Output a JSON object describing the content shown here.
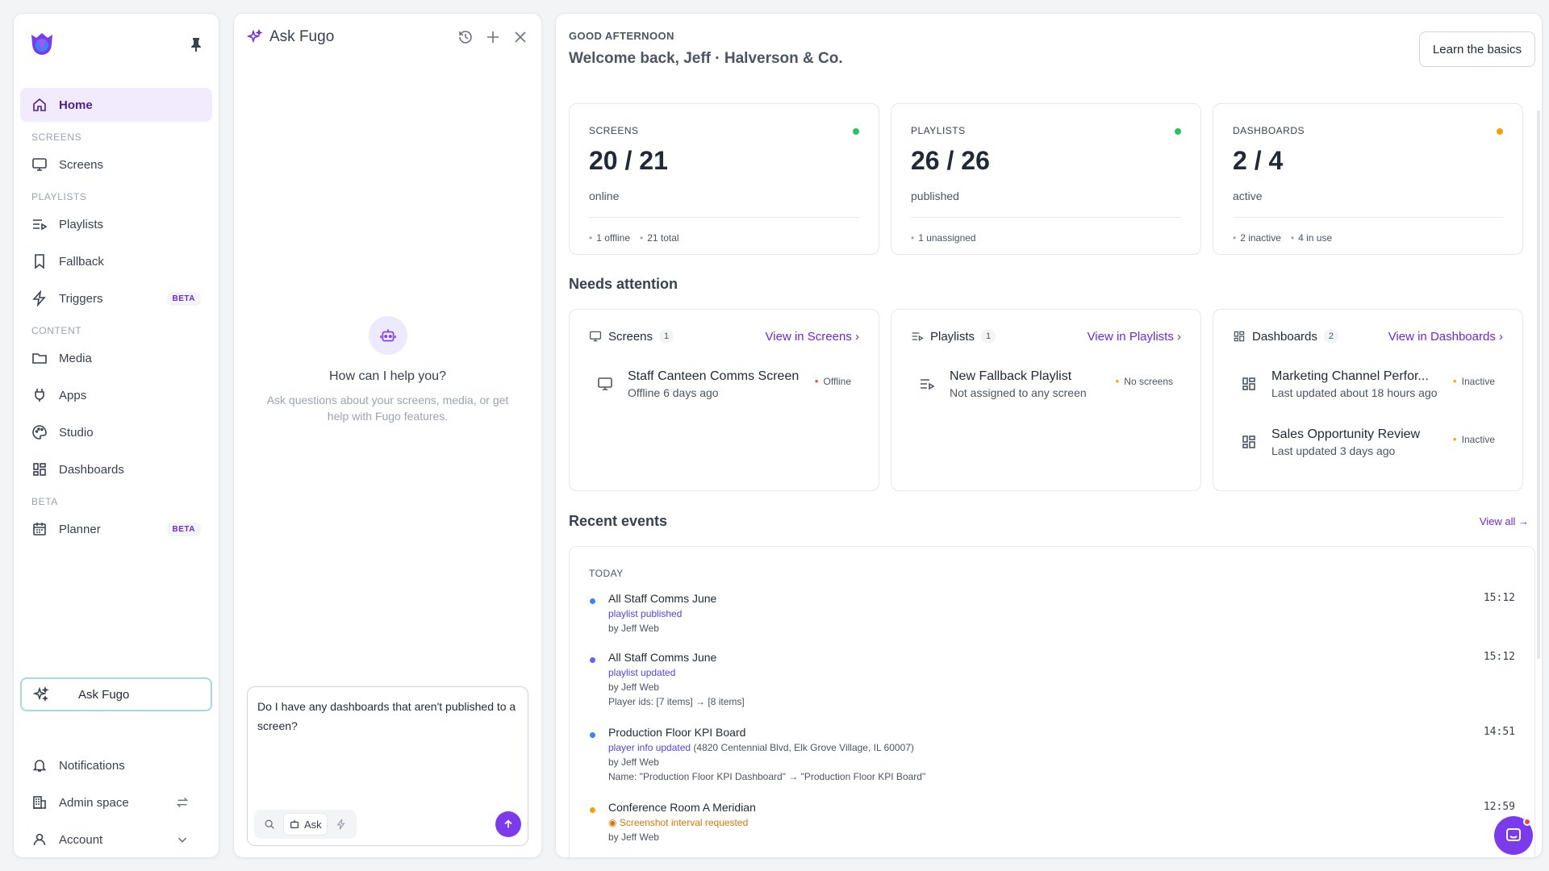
{
  "sidebar": {
    "home": "Home",
    "screens_section": "SCREENS",
    "screens": "Screens",
    "playlists_section": "PLAYLISTS",
    "playlists": "Playlists",
    "fallback": "Fallback",
    "triggers": "Triggers",
    "triggers_badge": "BETA",
    "content_section": "CONTENT",
    "media": "Media",
    "apps": "Apps",
    "studio": "Studio",
    "dashboards": "Dashboards",
    "beta_section": "BETA",
    "planner": "Planner",
    "planner_badge": "BETA",
    "ask_fugo": "Ask Fugo",
    "notifications": "Notifications",
    "admin_space": "Admin space",
    "account": "Account"
  },
  "ask": {
    "title": "Ask Fugo",
    "empty_title": "How can I help you?",
    "empty_text": "Ask questions about your screens, media, or get help with Fugo features.",
    "message": "Do I have any dashboards that aren't published to a screen?",
    "mode_label": "Ask"
  },
  "main": {
    "greeting": "GOOD AFTERNOON",
    "welcome": "Welcome back, Jeff · Halverson & Co.",
    "learn_button": "Learn the basics",
    "stats": [
      {
        "label": "SCREENS",
        "value": "20 / 21",
        "sub": "online",
        "meta1": "1 offline",
        "meta2": "21 total",
        "dot_color": "#22c55e"
      },
      {
        "label": "PLAYLISTS",
        "value": "26 / 26",
        "sub": "published",
        "meta1": "1 unassigned",
        "meta2": "",
        "dot_color": "#22c55e"
      },
      {
        "label": "DASHBOARDS",
        "value": "2 / 4",
        "sub": "active",
        "meta1": "2 inactive",
        "meta2": "4 in use",
        "dot_color": "#f59e0b"
      }
    ],
    "needs_attention": "Needs attention",
    "attention": [
      {
        "title": "Screens",
        "count": "1",
        "link": "View in Screens",
        "items": [
          {
            "name": "Staff Canteen Comms Screen",
            "detail": "Offline 6 days ago",
            "status": "Offline",
            "status_color": "#ef4444"
          }
        ]
      },
      {
        "title": "Playlists",
        "count": "1",
        "link": "View in Playlists",
        "items": [
          {
            "name": "New Fallback Playlist",
            "detail": "Not assigned to any screen",
            "status": "No screens",
            "status_color": "#f59e0b"
          }
        ]
      },
      {
        "title": "Dashboards",
        "count": "2",
        "link": "View in Dashboards",
        "items": [
          {
            "name": "Marketing Channel Perfor...",
            "detail": "Last updated about 18 hours ago",
            "status": "Inactive",
            "status_color": "#f59e0b"
          },
          {
            "name": "Sales Opportunity Review",
            "detail": "Last updated 3 days ago",
            "status": "Inactive",
            "status_color": "#f59e0b"
          }
        ]
      }
    ],
    "recent_events": "Recent events",
    "view_all": "View all →",
    "today": "TODAY",
    "events": [
      {
        "name": "All Staff Comms June",
        "action": "playlist published",
        "extra": "",
        "by": "by Jeff Web",
        "detail": "",
        "time": "15:12",
        "color": "#3b82f6"
      },
      {
        "name": "All Staff Comms June",
        "action": "playlist updated",
        "extra": "",
        "by": "by Jeff Web",
        "detail": "Player ids: [7 items] → [8 items]",
        "time": "15:12",
        "color": "#6366f1"
      },
      {
        "name": "Production Floor KPI Board",
        "action": "player info updated",
        "extra": " (4820 Centennial Blvd, Elk Grove Village, IL 60007)",
        "by": "by Jeff Web",
        "detail": "Name: \"Production Floor KPI Dashboard\" → \"Production Floor KPI Board\"",
        "time": "14:51",
        "color": "#3b82f6"
      },
      {
        "name": "Conference Room A Meridian",
        "action": "Screenshot interval requested",
        "extra": "",
        "by": "by Jeff Web",
        "detail": "",
        "time": "12:59",
        "color": "#f59e0b"
      }
    ]
  }
}
